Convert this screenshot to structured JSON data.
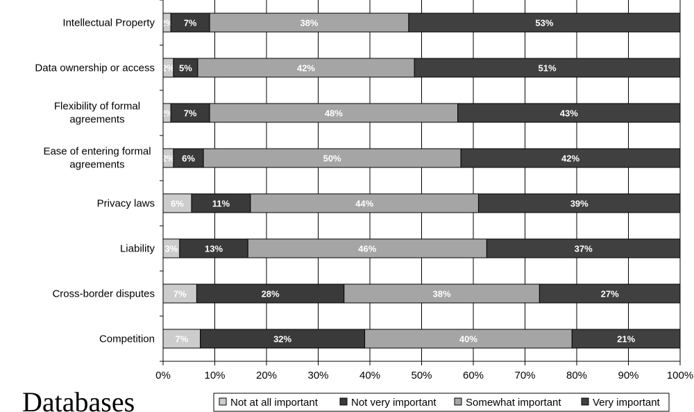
{
  "caption": "Databases",
  "chart_data": {
    "type": "bar",
    "orientation": "horizontal",
    "stacked": true,
    "categories": [
      "Intellectual Property",
      "Data ownership or access",
      "Flexibility of formal agreements",
      "Ease of entering formal agreements",
      "Privacy laws",
      "Liability",
      "Cross-border disputes",
      "Competition"
    ],
    "series": [
      {
        "name": "Not at all important",
        "color": "#cccccc",
        "values": [
          1.5,
          2,
          1.5,
          2,
          5.5,
          3.2,
          6.5,
          7.2
        ],
        "labels": [
          "2%",
          "2%",
          "2%",
          "2%",
          "6%",
          "3%",
          "7%",
          "7%"
        ]
      },
      {
        "name": "Not very important",
        "color": "#3a3a3a",
        "values": [
          7.5,
          4.7,
          7.5,
          5.8,
          11.4,
          13.2,
          28.5,
          31.8
        ],
        "labels": [
          "7%",
          "5%",
          "7%",
          "6%",
          "11%",
          "13%",
          "28%",
          "32%"
        ]
      },
      {
        "name": "Somewhat important",
        "color": "#a5a5a5",
        "values": [
          38.5,
          41.9,
          48,
          49.8,
          44.1,
          46.2,
          37.8,
          40.1
        ],
        "labels": [
          "38%",
          "42%",
          "48%",
          "50%",
          "44%",
          "46%",
          "38%",
          "40%"
        ]
      },
      {
        "name": "Very important",
        "color": "#404040",
        "values": [
          52.5,
          51.4,
          43,
          42.4,
          39,
          37.4,
          27.2,
          20.9
        ],
        "labels": [
          "53%",
          "51%",
          "43%",
          "42%",
          "39%",
          "37%",
          "27%",
          "21%"
        ]
      }
    ],
    "x_ticks": [
      "0%",
      "10%",
      "20%",
      "30%",
      "40%",
      "50%",
      "60%",
      "70%",
      "80%",
      "90%",
      "100%"
    ],
    "xlim": [
      0,
      100
    ],
    "grid": true,
    "legend": "bottom"
  }
}
